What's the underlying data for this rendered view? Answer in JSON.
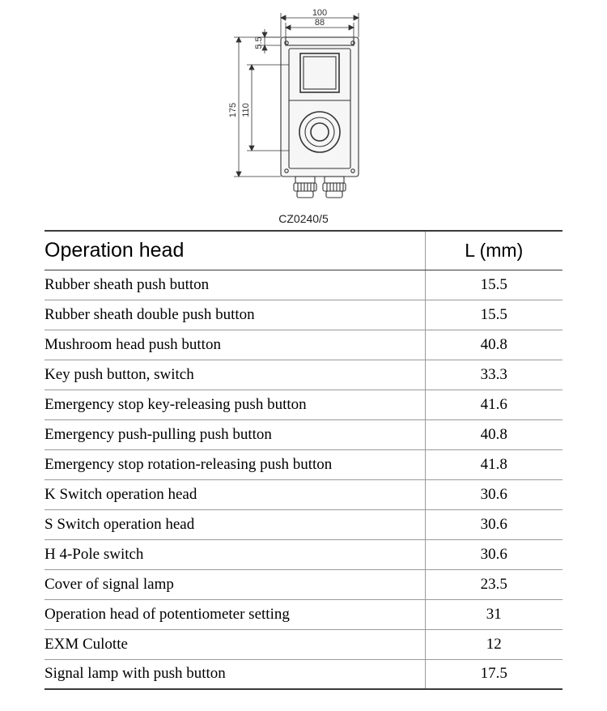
{
  "model": "CZ0240/5",
  "dimensions": {
    "width_outer": "100",
    "width_inner": "88",
    "height_outer": "175",
    "height_inner": "110",
    "offset_top": "5.5"
  },
  "diagram_style": {
    "stroke_color": "#333333",
    "dim_fontsize": 11,
    "body_stroke_width": 1.1,
    "dim_stroke_width": 0.8,
    "background_color": "#ffffff"
  },
  "table": {
    "header": {
      "name": "Operation head",
      "value": "L (mm)"
    },
    "header_fontsize": 25,
    "cell_fontsize": 19,
    "border_color": "#9a9a9a",
    "strong_border_color": "#3a3a3a",
    "rows": [
      {
        "name": "Rubber sheath push button",
        "value": "15.5"
      },
      {
        "name": "Rubber sheath double push button",
        "value": "15.5"
      },
      {
        "name": "Mushroom head push button",
        "value": "40.8"
      },
      {
        "name": "Key push button, switch",
        "value": "33.3"
      },
      {
        "name": "Emergency stop key-releasing push button",
        "value": "41.6"
      },
      {
        "name": "Emergency push-pulling push button",
        "value": "40.8"
      },
      {
        "name": "Emergency stop rotation-releasing push button",
        "value": "41.8"
      },
      {
        "name": "K Switch operation head",
        "value": "30.6"
      },
      {
        "name": "S Switch operation head",
        "value": "30.6"
      },
      {
        "name": "H  4-Pole switch",
        "value": "30.6"
      },
      {
        "name": "Cover of signal lamp",
        "value": "23.5"
      },
      {
        "name": "Operation head of potentiometer setting",
        "value": "31"
      },
      {
        "name": "EXM Culotte",
        "value": "12"
      },
      {
        "name": "Signal lamp with push button",
        "value": "17.5"
      }
    ]
  }
}
